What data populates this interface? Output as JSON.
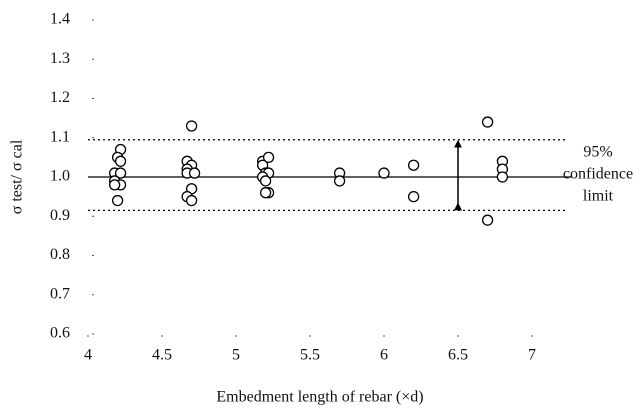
{
  "chart_data": {
    "type": "scatter",
    "xlabel": "Embedment length of rebar (×d)",
    "ylabel": "σ test/ σ cal",
    "xlim": [
      4,
      7
    ],
    "ylim": [
      0.6,
      1.4
    ],
    "xticks": [
      4,
      4.5,
      5,
      5.5,
      6,
      6.5,
      7
    ],
    "yticks": [
      0.6,
      0.7,
      0.8,
      0.9,
      {
        "value": 1,
        "label": "1.0"
      },
      1.1,
      1.2,
      1.3,
      1.4
    ],
    "series": [
      {
        "color": "#000000",
        "x": [
          4.22,
          4.2,
          4.22,
          4.18,
          4.22,
          4.18,
          4.22,
          4.18,
          4.2,
          4.67,
          4.7,
          4.67,
          4.7,
          4.67,
          4.72,
          4.7,
          4.67,
          4.7,
          5.18,
          5.22,
          5.18,
          5.2,
          5.22,
          5.18,
          5.2,
          5.22,
          5.2,
          5.7,
          5.7,
          6.0,
          6.2,
          6.2,
          6.7,
          6.7,
          6.8,
          6.8,
          6.8
        ],
        "values": [
          1.07,
          1.05,
          1.04,
          1.01,
          1.01,
          0.99,
          0.98,
          0.98,
          0.94,
          1.04,
          1.03,
          1.02,
          1.13,
          1.01,
          1.01,
          0.97,
          0.95,
          0.94,
          1.04,
          1.05,
          1.03,
          1.01,
          1.01,
          1.0,
          0.99,
          0.96,
          0.96,
          1.01,
          0.99,
          1.01,
          1.03,
          0.95,
          1.14,
          0.89,
          1.04,
          1.02,
          1.0
        ]
      }
    ],
    "reference_lines": [
      {
        "value": 1.0,
        "style": "solid"
      },
      {
        "value": 1.095,
        "style": "dotted"
      },
      {
        "value": 0.915,
        "style": "dotted"
      }
    ],
    "arrow": {
      "x": 6.5,
      "from": 0.915,
      "to": 1.095
    },
    "annotation": [
      "95%",
      "confidence",
      "limit"
    ]
  }
}
